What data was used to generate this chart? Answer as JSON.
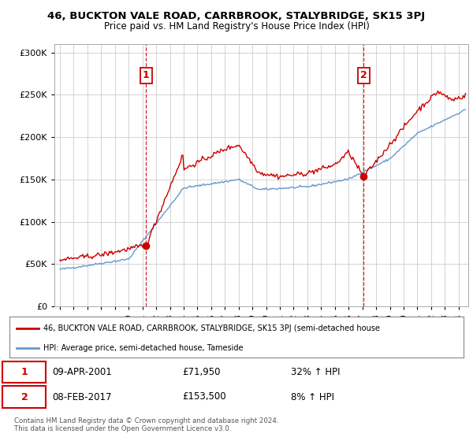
{
  "title": "46, BUCKTON VALE ROAD, CARRBROOK, STALYBRIDGE, SK15 3PJ",
  "subtitle": "Price paid vs. HM Land Registry's House Price Index (HPI)",
  "legend_line1": "46, BUCKTON VALE ROAD, CARRBROOK, STALYBRIDGE, SK15 3PJ (semi-detached house",
  "legend_line2": "HPI: Average price, semi-detached house, Tameside",
  "transaction1_date": "09-APR-2001",
  "transaction1_price": "£71,950",
  "transaction1_hpi": "32% ↑ HPI",
  "transaction2_date": "08-FEB-2017",
  "transaction2_price": "£153,500",
  "transaction2_hpi": "8% ↑ HPI",
  "footnote1": "Contains HM Land Registry data © Crown copyright and database right 2024.",
  "footnote2": "This data is licensed under the Open Government Licence v3.0.",
  "property_color": "#cc0000",
  "hpi_color": "#6699cc",
  "ylim": [
    0,
    310000
  ],
  "yticks": [
    0,
    50000,
    100000,
    150000,
    200000,
    250000,
    300000
  ],
  "background_color": "#ffffff",
  "grid_color": "#cccccc",
  "transaction1_date_num": 2001.27,
  "transaction1_value": 71950,
  "transaction2_date_num": 2017.1,
  "transaction2_value": 153500
}
